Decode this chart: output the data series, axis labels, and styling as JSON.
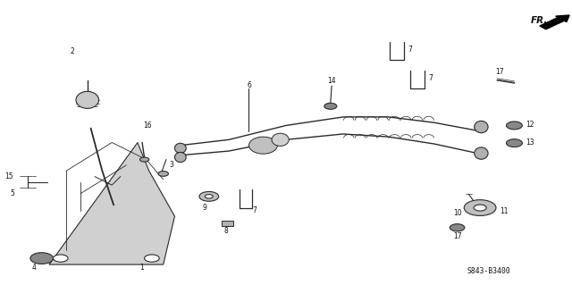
{
  "bg_color": "#ffffff",
  "fig_width": 6.4,
  "fig_height": 3.19,
  "dpi": 100,
  "code": "S843-B3400",
  "fr_label": "FR.",
  "lc": "#2a2a2a"
}
